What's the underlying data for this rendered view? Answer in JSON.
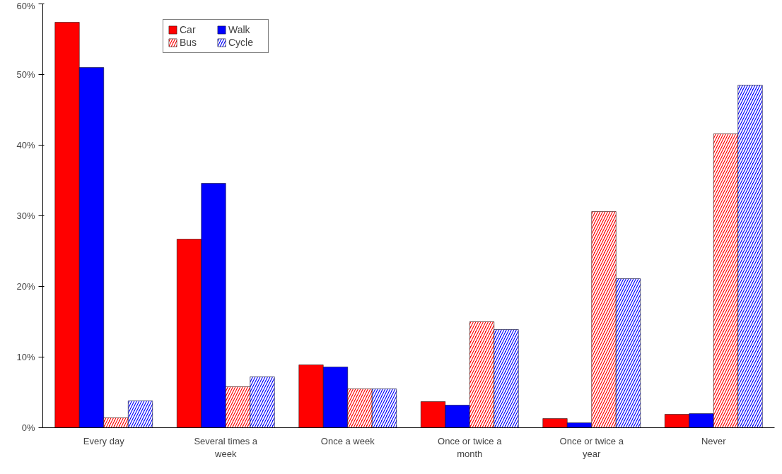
{
  "chart_data": {
    "type": "bar",
    "categories": [
      "Every day",
      "Several times a week",
      "Once a week",
      "Once or twice a month",
      "Once or twice a year",
      "Never"
    ],
    "series": [
      {
        "name": "Car",
        "color": "#ff0000",
        "values": [
          57.4,
          26.7,
          8.9,
          3.7,
          1.3,
          1.9
        ]
      },
      {
        "name": "Bus",
        "color": "#ff0000",
        "values": [
          1.4,
          5.8,
          5.5,
          15.0,
          30.6,
          41.6
        ]
      },
      {
        "name": "Walk",
        "color": "#0000ff",
        "values": [
          51.0,
          34.6,
          8.6,
          3.2,
          0.7,
          2.0
        ]
      },
      {
        "name": "Cycle",
        "color": "#0000ff",
        "values": [
          3.8,
          7.2,
          5.5,
          13.9,
          21.1,
          48.5
        ]
      }
    ],
    "ylim": [
      0,
      60
    ],
    "yticks": [
      {
        "value": 0,
        "label": "0%"
      },
      {
        "value": 10,
        "label": "10%"
      },
      {
        "value": 20,
        "label": "20%"
      },
      {
        "value": 30,
        "label": "30%"
      },
      {
        "value": 40,
        "label": "40%"
      },
      {
        "value": 50,
        "label": "50%"
      },
      {
        "value": 60,
        "label": "60%"
      }
    ],
    "grid": false,
    "legend": "top left"
  }
}
